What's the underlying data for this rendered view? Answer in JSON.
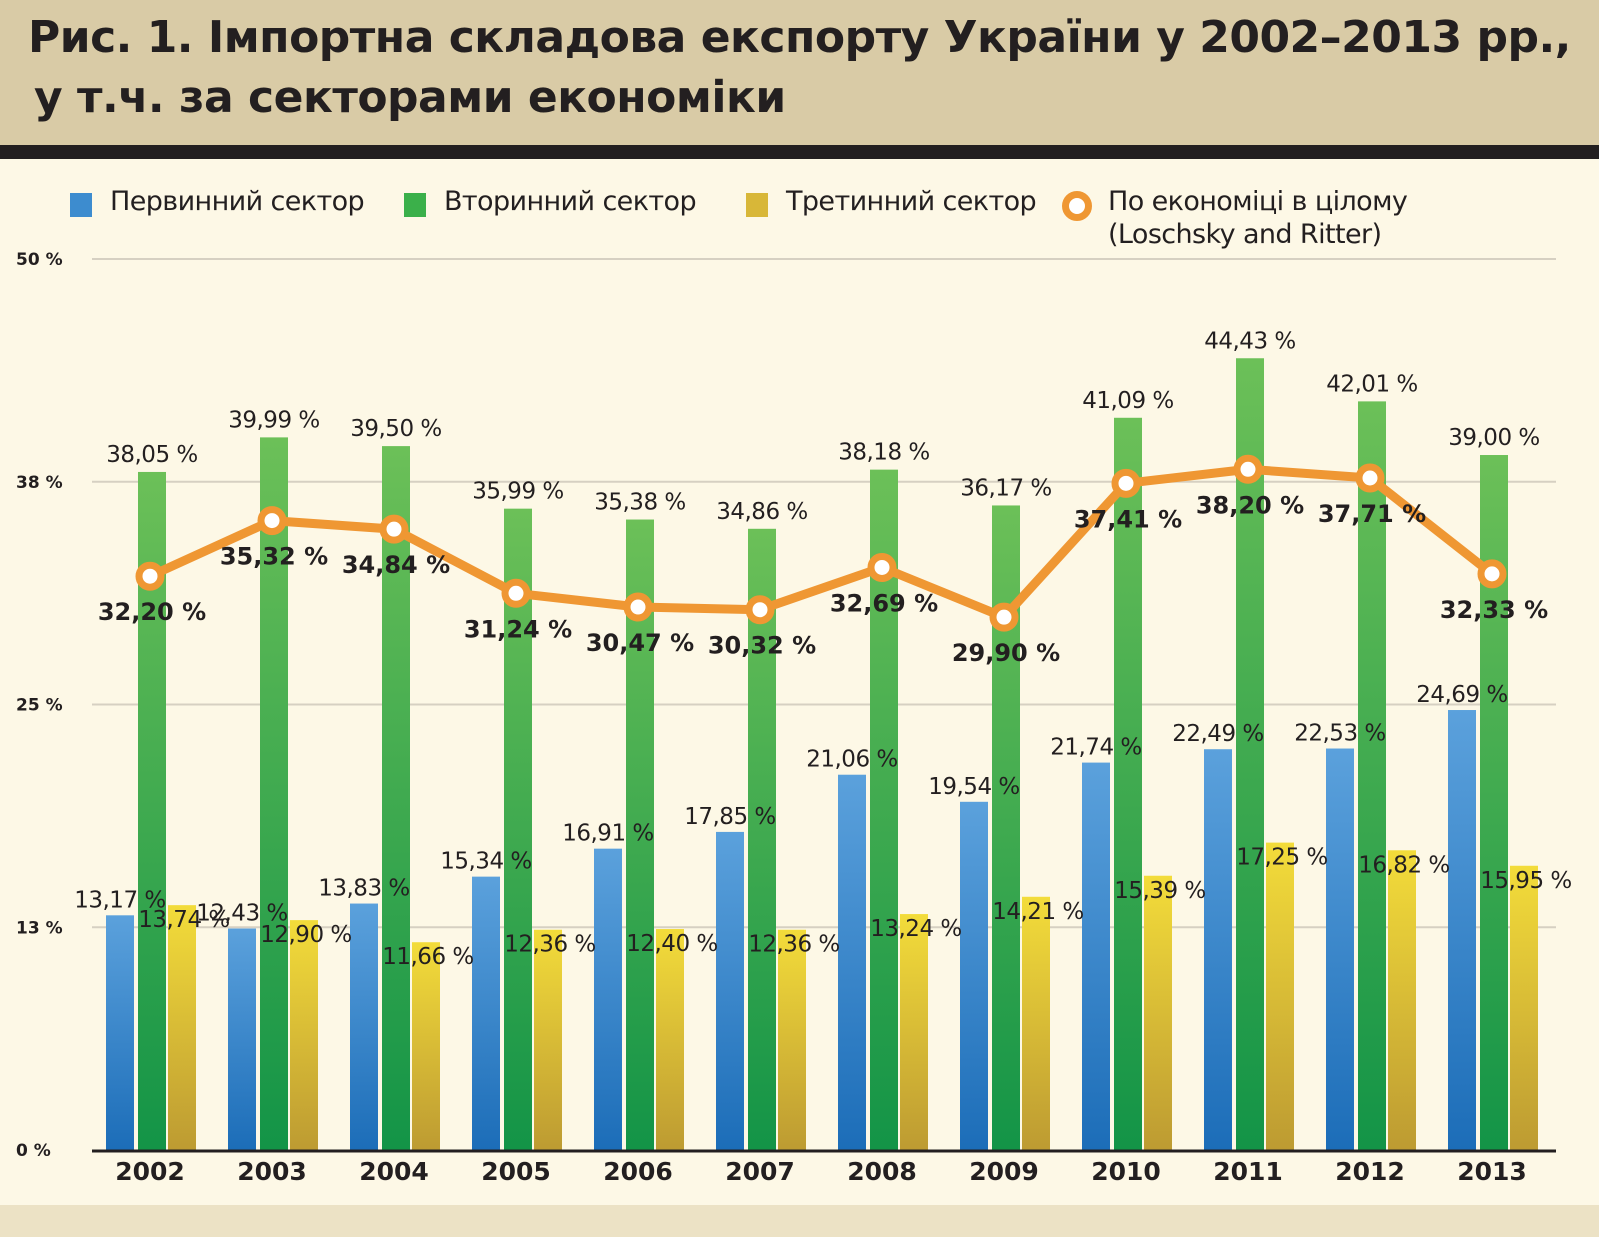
{
  "header": {
    "title_line1": "Рис. 1. Імпортна складова експорту України у 2002–2013 рр.,",
    "title_line2": "у т.ч. за секторами економіки"
  },
  "legend": {
    "items": [
      {
        "label": "Первинний сектор",
        "color": "#3d8ccf"
      },
      {
        "label": "Вторинний сектор",
        "color": "#3bb04a"
      },
      {
        "label": "Третинний сектор",
        "color": "#d8b738"
      },
      {
        "label_line1": "По економіці в цілому",
        "label_line2": "(Loschsky and Ritter)",
        "color": "#ef9733"
      }
    ]
  },
  "chart_data": {
    "type": "bar",
    "title": "Рис. 1. Імпортна складова експорту України у 2002–2013 рр., у т.ч. за секторами економіки",
    "xlabel": "",
    "ylabel": "",
    "ylim": [
      0,
      50
    ],
    "y_ticks": [
      {
        "value": 0,
        "label": "0 %"
      },
      {
        "value": 12.5,
        "label": "13 %"
      },
      {
        "value": 25,
        "label": "25 %"
      },
      {
        "value": 37.5,
        "label": "38 %"
      },
      {
        "value": 50,
        "label": "50 %"
      }
    ],
    "grid": true,
    "legend_position": "top",
    "categories": [
      "2002",
      "2003",
      "2004",
      "2005",
      "2006",
      "2007",
      "2008",
      "2009",
      "2010",
      "2011",
      "2012",
      "2013"
    ],
    "series": [
      {
        "name": "Первинний сектор",
        "type": "bar",
        "color": "#3d8ccf",
        "values": [
          13.17,
          12.43,
          13.83,
          15.34,
          16.91,
          17.85,
          21.06,
          19.54,
          21.74,
          22.49,
          22.53,
          24.69
        ],
        "labels": [
          "13,17 %",
          "12,43 %",
          "13,83 %",
          "15,34 %",
          "16,91 %",
          "17,85 %",
          "21,06 %",
          "19,54 %",
          "21,74 %",
          "22,49 %",
          "22,53 %",
          "24,69 %"
        ]
      },
      {
        "name": "Вторинний сектор",
        "type": "bar",
        "color": "#3bb04a",
        "values": [
          38.05,
          39.99,
          39.5,
          35.99,
          35.38,
          34.86,
          38.18,
          36.17,
          41.09,
          44.43,
          42.01,
          39.0
        ],
        "labels": [
          "38,05 %",
          "39,99 %",
          "39,50 %",
          "35,99 %",
          "35,38 %",
          "34,86 %",
          "38,18 %",
          "36,17 %",
          "41,09 %",
          "44,43 %",
          "42,01 %",
          "39,00 %"
        ]
      },
      {
        "name": "Третинний сектор",
        "type": "bar",
        "color": "#d8b738",
        "values": [
          13.74,
          12.9,
          11.66,
          12.36,
          12.4,
          12.36,
          13.24,
          14.21,
          15.39,
          17.25,
          16.82,
          15.95
        ],
        "labels": [
          "13,74 %",
          "12,90 %",
          "11,66 %",
          "12,36 %",
          "12,40 %",
          "12,36 %",
          "13,24 %",
          "14,21 %",
          "15,39 %",
          "17,25 %",
          "16,82 %",
          "15,95 %"
        ]
      },
      {
        "name": "По економіці в цілому (Loschsky and Ritter)",
        "type": "line",
        "color": "#ef9733",
        "values": [
          32.2,
          35.32,
          34.84,
          31.24,
          30.47,
          30.32,
          32.69,
          29.9,
          37.41,
          38.2,
          37.71,
          32.33
        ],
        "labels": [
          "32,20 %",
          "35,32 %",
          "34,84 %",
          "31,24 %",
          "30,47 %",
          "30,32 %",
          "32,69 %",
          "29,90 %",
          "37,41 %",
          "38,20 %",
          "37,71 %",
          "32,33 %"
        ]
      }
    ]
  }
}
